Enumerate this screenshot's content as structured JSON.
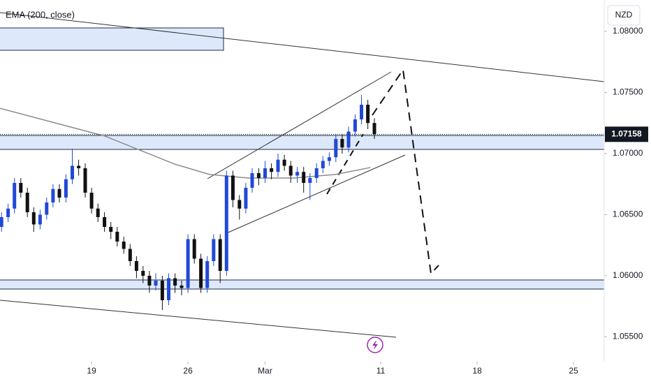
{
  "chart_data": {
    "type": "candlestick",
    "currency": "NZD",
    "xlim": [
      -4.75,
      26.59
    ],
    "xticks": [
      {
        "value": 0,
        "label": "19"
      },
      {
        "value": 5,
        "label": "26"
      },
      {
        "value": 9,
        "label": "Mar"
      },
      {
        "value": 15,
        "label": "11"
      },
      {
        "value": 20,
        "label": "18"
      },
      {
        "value": 25,
        "label": "25"
      }
    ],
    "ylim": [
      1.05297,
      1.08257
    ],
    "yticks": [
      {
        "value": 1.055,
        "label": "1.05500"
      },
      {
        "value": 1.06,
        "label": "1.06000"
      },
      {
        "value": 1.065,
        "label": "1.06500"
      },
      {
        "value": 1.07,
        "label": "1.07000"
      },
      {
        "value": 1.075,
        "label": "1.07500"
      },
      {
        "value": 1.08,
        "label": "1.08000"
      }
    ],
    "last_price": 1.07158,
    "up_color": "#2149d6",
    "down_color": "#111111",
    "x": [
      -4.67,
      -4.33,
      -4,
      -3.67,
      -3.33,
      -3,
      -2.67,
      -2.33,
      -2,
      -1.67,
      -1.33,
      -1,
      -0.67,
      -0.33,
      0,
      0.33,
      0.67,
      1,
      1.33,
      1.67,
      2,
      2.33,
      2.67,
      3,
      3.33,
      3.67,
      4,
      4.33,
      4.67,
      5,
      5.33,
      5.67,
      6,
      6.33,
      6.67,
      7,
      7.33,
      7.67,
      8,
      8.33,
      8.67,
      9,
      9.33,
      9.67,
      10,
      10.33,
      10.67,
      11,
      11.33,
      11.67,
      12,
      12.33,
      12.67,
      13,
      13.33,
      13.67,
      14,
      14.33,
      14.67
    ],
    "open": [
      1.064,
      1.0648,
      1.0655,
      1.0676,
      1.0668,
      1.0652,
      1.0642,
      1.065,
      1.066,
      1.0671,
      1.0664,
      1.0679,
      1.069,
      1.0688,
      1.0668,
      1.0655,
      1.0648,
      1.064,
      1.0636,
      1.0628,
      1.0622,
      1.0612,
      1.0604,
      1.06,
      1.0592,
      1.0596,
      1.058,
      1.0598,
      1.0592,
      1.059,
      1.063,
      1.0614,
      1.059,
      1.0612,
      1.063,
      1.0604,
      1.0682,
      1.0662,
      1.0655,
      1.0672,
      1.0684,
      1.068,
      1.0688,
      1.0685,
      1.0695,
      1.069,
      1.0682,
      1.0685,
      1.0676,
      1.068,
      1.0688,
      1.0694,
      1.0697,
      1.0712,
      1.0705,
      1.0718,
      1.0728,
      1.074,
      1.0725
    ],
    "high": [
      1.0652,
      1.0659,
      1.068,
      1.068,
      1.0672,
      1.0656,
      1.0654,
      1.0664,
      1.0675,
      1.0675,
      1.0683,
      1.0704,
      1.0695,
      1.0692,
      1.0672,
      1.0659,
      1.0652,
      1.0644,
      1.064,
      1.0632,
      1.0626,
      1.0616,
      1.0608,
      1.0604,
      1.0602,
      1.06,
      1.0602,
      1.0602,
      1.0596,
      1.0634,
      1.0634,
      1.0618,
      1.0616,
      1.0634,
      1.0634,
      1.0686,
      1.0686,
      1.0666,
      1.0676,
      1.0688,
      1.0688,
      1.0694,
      1.0692,
      1.07,
      1.0699,
      1.0694,
      1.0689,
      1.0689,
      1.0684,
      1.0692,
      1.0698,
      1.0701,
      1.0716,
      1.0716,
      1.0722,
      1.0732,
      1.0748,
      1.0744,
      1.0729
    ],
    "low": [
      1.0636,
      1.0644,
      1.0651,
      1.0664,
      1.0648,
      1.0636,
      1.0638,
      1.0646,
      1.0656,
      1.066,
      1.066,
      1.0675,
      1.0682,
      1.0664,
      1.0651,
      1.0644,
      1.0636,
      1.063,
      1.0624,
      1.0618,
      1.0608,
      1.0598,
      1.0594,
      1.0586,
      1.0588,
      1.0572,
      1.0576,
      1.0586,
      1.0584,
      1.0586,
      1.061,
      1.0586,
      1.0586,
      1.0608,
      1.0594,
      1.06,
      1.0656,
      1.0646,
      1.0651,
      1.0668,
      1.0674,
      1.0676,
      1.0679,
      1.0681,
      1.0686,
      1.0676,
      1.0676,
      1.0668,
      1.0662,
      1.0676,
      1.0684,
      1.069,
      1.0693,
      1.07,
      1.0701,
      1.0714,
      1.0724,
      1.072,
      1.0712
    ],
    "close": [
      1.0648,
      1.0655,
      1.0676,
      1.0668,
      1.0652,
      1.0642,
      1.065,
      1.066,
      1.0671,
      1.0664,
      1.0679,
      1.069,
      1.0688,
      1.0668,
      1.0655,
      1.0648,
      1.064,
      1.0636,
      1.0628,
      1.0622,
      1.0612,
      1.0604,
      1.06,
      1.0592,
      1.0596,
      1.058,
      1.0598,
      1.0592,
      1.059,
      1.063,
      1.0614,
      1.059,
      1.0612,
      1.063,
      1.0604,
      1.0682,
      1.0662,
      1.0655,
      1.0672,
      1.0684,
      1.068,
      1.0688,
      1.0685,
      1.0695,
      1.069,
      1.0682,
      1.0685,
      1.0676,
      1.068,
      1.0688,
      1.0694,
      1.0697,
      1.0712,
      1.0705,
      1.0718,
      1.0728,
      1.074,
      1.0725,
      1.0716
    ],
    "ema": {
      "name": "EMA (200, close)",
      "color": "#8c8c8c",
      "x": [
        -4.75,
        0.69,
        4.31,
        6.12,
        8.12,
        10.47,
        12.64,
        14.46
      ],
      "values": [
        1.07371,
        1.07143,
        1.06914,
        1.06829,
        1.068,
        1.068,
        1.06829,
        1.06886
      ]
    }
  }
}
